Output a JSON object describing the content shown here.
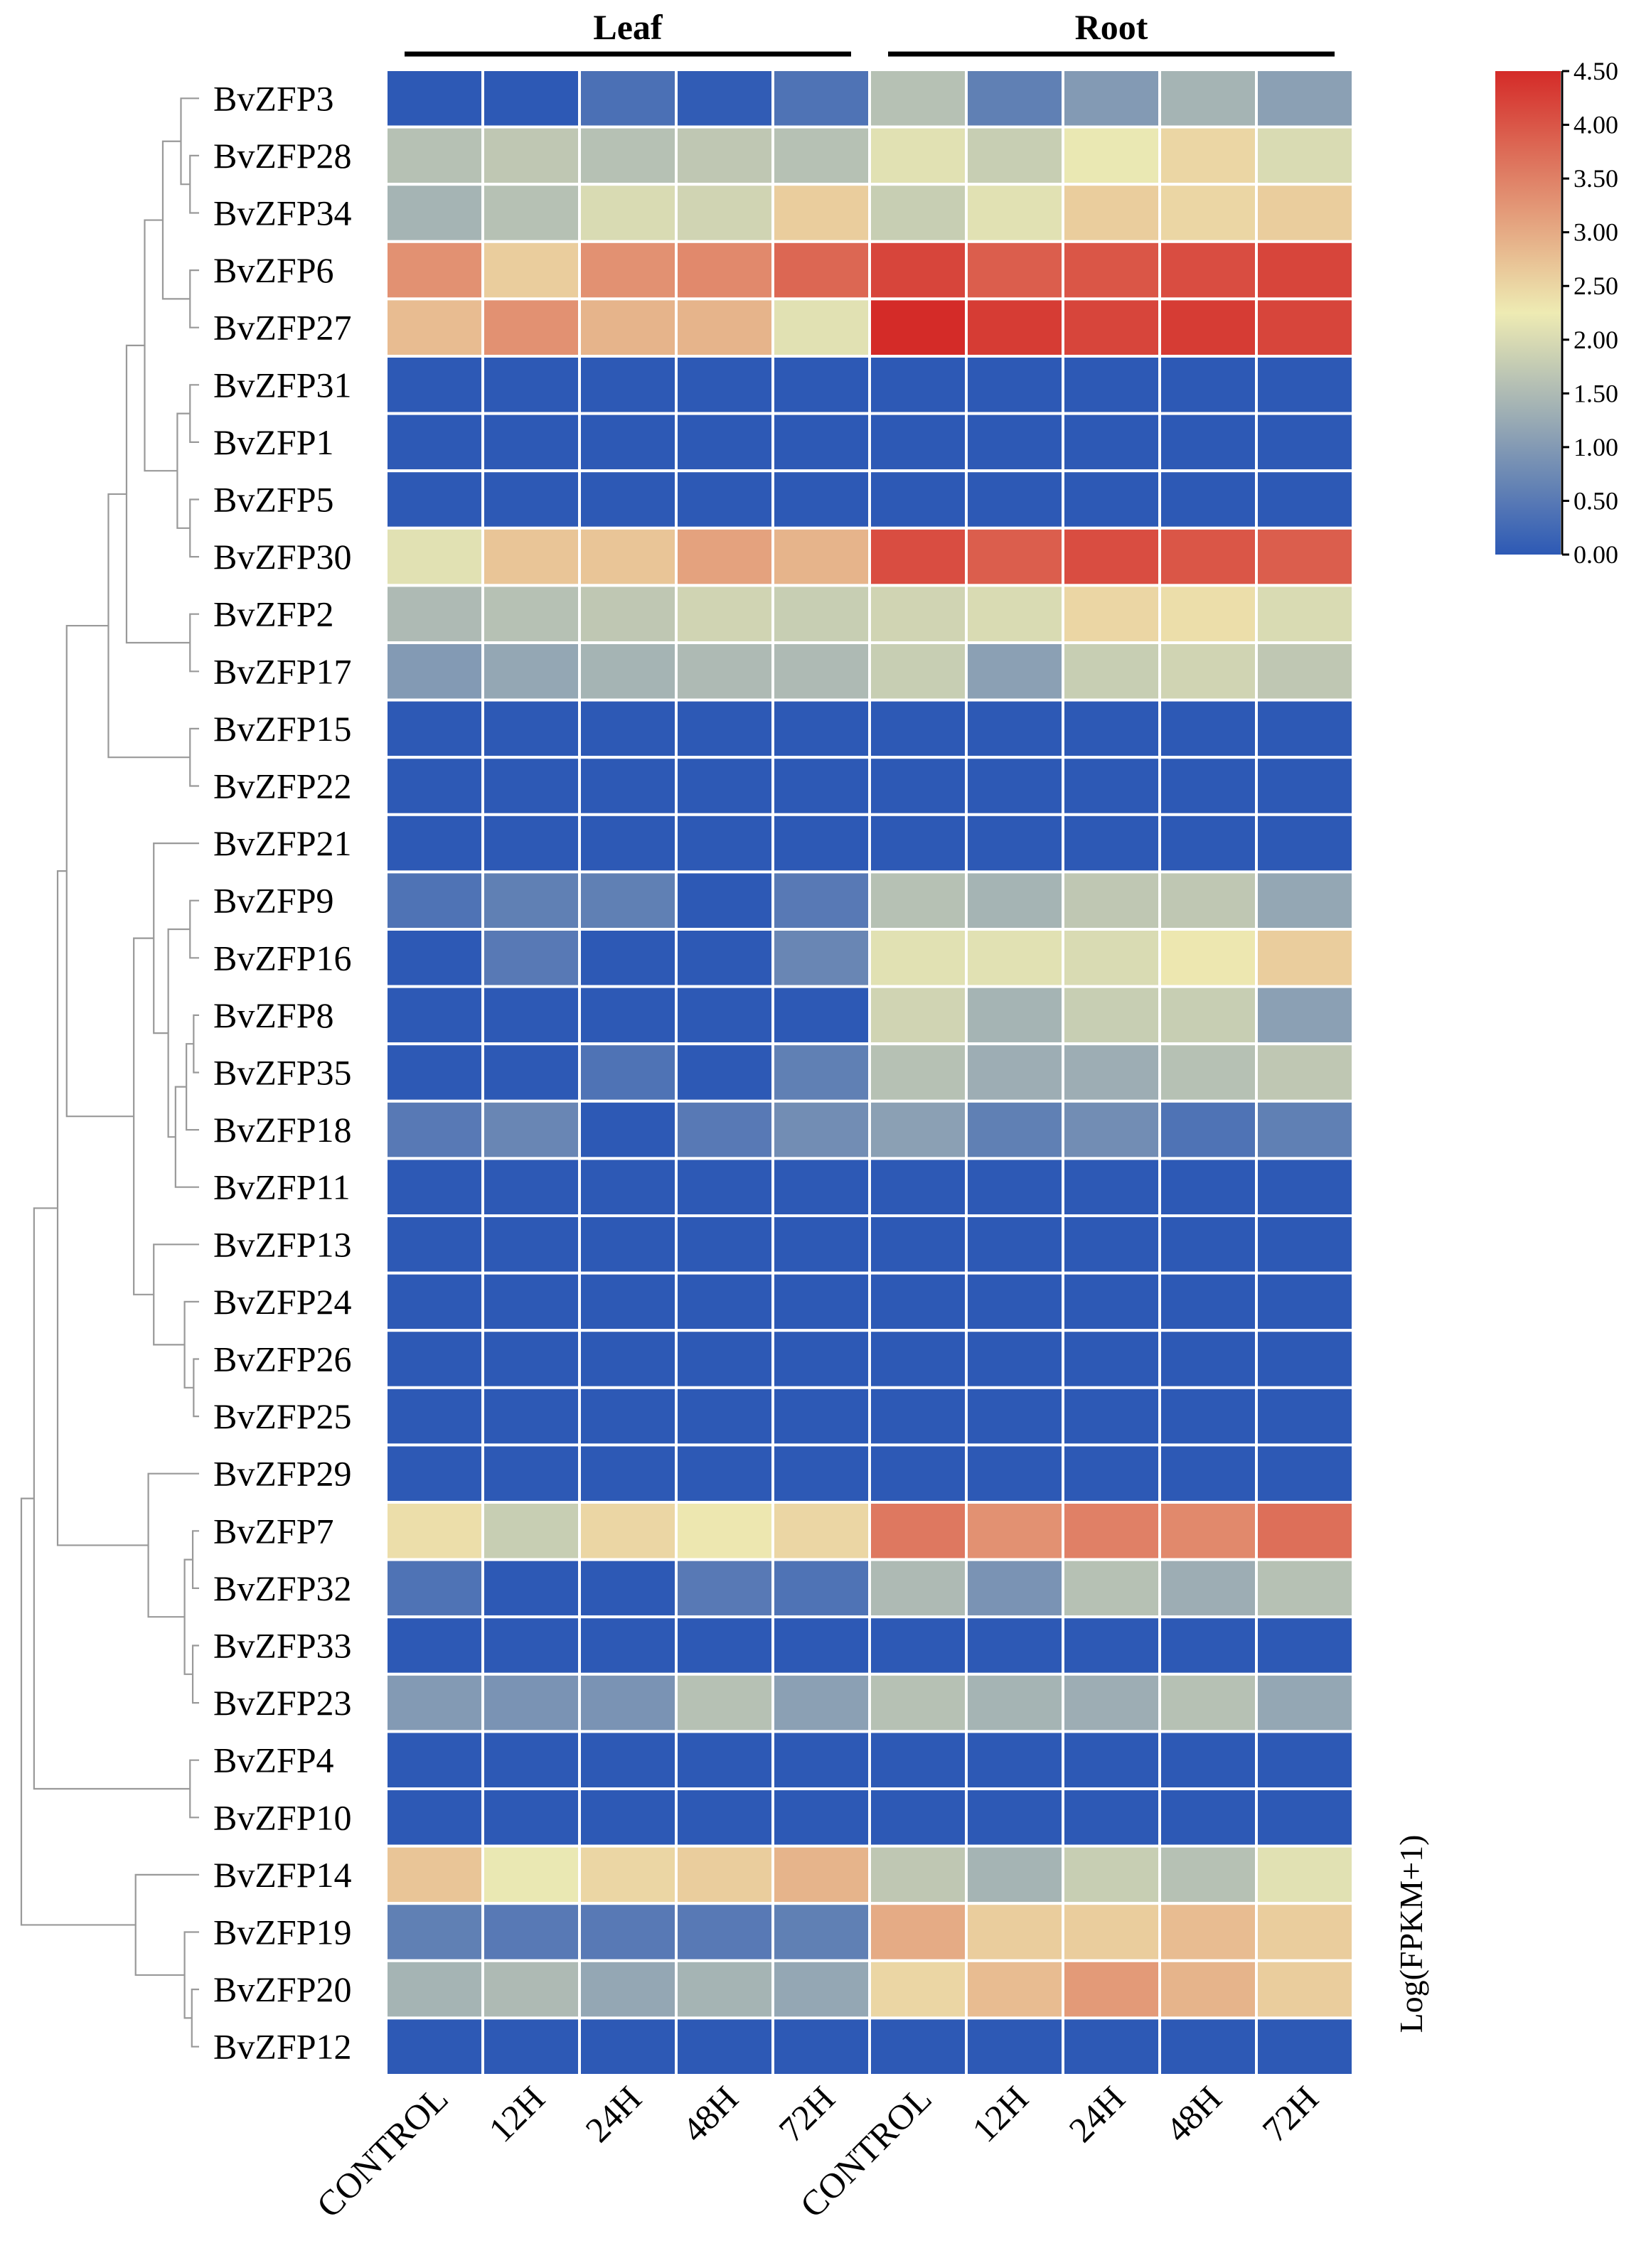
{
  "chart_data": {
    "type": "heatmap",
    "title": "",
    "groups": [
      {
        "name": "Leaf",
        "columns": [
          "CONTROL",
          "12H",
          "24H",
          "48H",
          "72H"
        ]
      },
      {
        "name": "Root",
        "columns": [
          "CONTROL",
          "12H",
          "24H",
          "48H",
          "72H"
        ]
      }
    ],
    "columns": [
      "CONTROL",
      "12H",
      "24H",
      "48H",
      "72H",
      "CONTROL",
      "12H",
      "24H",
      "48H",
      "72H"
    ],
    "rows": [
      "BvZFP3",
      "BvZFP28",
      "BvZFP34",
      "BvZFP6",
      "BvZFP27",
      "BvZFP31",
      "BvZFP1",
      "BvZFP5",
      "BvZFP30",
      "BvZFP2",
      "BvZFP17",
      "BvZFP15",
      "BvZFP22",
      "BvZFP21",
      "BvZFP9",
      "BvZFP16",
      "BvZFP8",
      "BvZFP35",
      "BvZFP18",
      "BvZFP11",
      "BvZFP13",
      "BvZFP24",
      "BvZFP26",
      "BvZFP25",
      "BvZFP29",
      "BvZFP7",
      "BvZFP32",
      "BvZFP33",
      "BvZFP23",
      "BvZFP4",
      "BvZFP10",
      "BvZFP14",
      "BvZFP19",
      "BvZFP20",
      "BvZFP12"
    ],
    "values": [
      [
        0.0,
        0.0,
        0.35,
        0.05,
        0.4,
        1.6,
        0.6,
        1.0,
        1.4,
        1.1
      ],
      [
        1.6,
        1.7,
        1.6,
        1.7,
        1.6,
        2.1,
        1.8,
        2.2,
        2.5,
        2.0
      ],
      [
        1.4,
        1.6,
        2.0,
        1.9,
        2.6,
        1.8,
        2.1,
        2.6,
        2.5,
        2.6
      ],
      [
        3.3,
        2.6,
        3.3,
        3.4,
        3.8,
        4.2,
        3.9,
        4.0,
        4.1,
        4.2
      ],
      [
        2.8,
        3.3,
        2.9,
        2.9,
        2.1,
        4.5,
        4.3,
        4.2,
        4.3,
        4.2
      ],
      [
        0,
        0,
        0,
        0,
        0,
        0,
        0,
        0,
        0,
        0
      ],
      [
        0,
        0,
        0,
        0,
        0,
        0,
        0,
        0,
        0,
        0
      ],
      [
        0,
        0,
        0,
        0,
        0,
        0,
        0,
        0,
        0,
        0
      ],
      [
        2.1,
        2.7,
        2.7,
        3.1,
        2.9,
        4.1,
        3.9,
        4.1,
        4.0,
        3.9
      ],
      [
        1.5,
        1.6,
        1.7,
        1.9,
        1.8,
        1.9,
        2.0,
        2.5,
        2.4,
        2.0
      ],
      [
        1.0,
        1.2,
        1.4,
        1.5,
        1.5,
        1.8,
        1.1,
        1.8,
        1.9,
        1.7
      ],
      [
        0,
        0,
        0,
        0,
        0,
        0,
        0,
        0,
        0,
        0
      ],
      [
        0,
        0,
        0,
        0,
        0,
        0,
        0,
        0,
        0,
        0
      ],
      [
        0,
        0,
        0,
        0,
        0,
        0,
        0,
        0,
        0,
        0
      ],
      [
        0.4,
        0.6,
        0.6,
        0.0,
        0.5,
        1.6,
        1.4,
        1.7,
        1.7,
        1.2
      ],
      [
        0.0,
        0.5,
        0.0,
        0.0,
        0.7,
        2.1,
        2.1,
        2.0,
        2.3,
        2.6
      ],
      [
        0.0,
        0.0,
        0.0,
        0.0,
        0.0,
        1.9,
        1.4,
        1.8,
        1.8,
        1.1
      ],
      [
        0.0,
        0.0,
        0.4,
        0.0,
        0.6,
        1.6,
        1.3,
        1.3,
        1.6,
        1.7
      ],
      [
        0.5,
        0.7,
        0.0,
        0.5,
        0.8,
        1.1,
        0.6,
        0.8,
        0.4,
        0.6
      ],
      [
        0,
        0,
        0,
        0,
        0,
        0,
        0,
        0,
        0,
        0
      ],
      [
        0,
        0,
        0,
        0,
        0,
        0,
        0,
        0,
        0,
        0
      ],
      [
        0,
        0,
        0,
        0,
        0,
        0,
        0,
        0,
        0,
        0
      ],
      [
        0,
        0,
        0,
        0,
        0,
        0,
        0,
        0,
        0,
        0
      ],
      [
        0,
        0,
        0,
        0,
        0,
        0,
        0,
        0,
        0,
        0
      ],
      [
        0,
        0,
        0,
        0,
        0,
        0,
        0,
        0,
        0,
        0
      ],
      [
        2.4,
        1.8,
        2.5,
        2.3,
        2.5,
        3.6,
        3.3,
        3.5,
        3.4,
        3.7
      ],
      [
        0.4,
        0.0,
        0.0,
        0.5,
        0.4,
        1.5,
        0.9,
        1.6,
        1.3,
        1.6
      ],
      [
        0,
        0,
        0,
        0,
        0,
        0,
        0,
        0,
        0,
        0
      ],
      [
        1.0,
        0.9,
        0.9,
        1.6,
        1.1,
        1.6,
        1.4,
        1.3,
        1.6,
        1.2
      ],
      [
        0,
        0,
        0,
        0,
        0,
        0,
        0,
        0,
        0,
        0
      ],
      [
        0,
        0,
        0,
        0,
        0,
        0,
        0,
        0,
        0,
        0
      ],
      [
        2.7,
        2.2,
        2.5,
        2.6,
        2.9,
        1.7,
        1.4,
        1.8,
        1.6,
        2.1
      ],
      [
        0.6,
        0.5,
        0.5,
        0.5,
        0.6,
        3.0,
        2.6,
        2.6,
        2.8,
        2.6
      ],
      [
        1.4,
        1.5,
        1.2,
        1.4,
        1.2,
        2.5,
        2.8,
        3.2,
        2.9,
        2.6
      ],
      [
        0,
        0,
        0,
        0,
        0,
        0,
        0,
        0,
        0,
        0
      ]
    ],
    "colorbar": {
      "min": 0.0,
      "max": 4.5,
      "tick_values": [
        0.0,
        0.5,
        1.0,
        1.5,
        2.0,
        2.5,
        3.0,
        3.5,
        4.0,
        4.5
      ],
      "tick_labels": [
        "0.00",
        "0.50",
        "1.00",
        "1.50",
        "2.00",
        "2.50",
        "3.00",
        "3.50",
        "4.00",
        "4.50"
      ],
      "title": "Log(FPKM+1)",
      "colors": [
        "#2d59b5",
        "#eeebb3",
        "#d42b28"
      ]
    },
    "cell_border_color": "#ffffff",
    "dendrogram": "left",
    "dendrogram_color": "#999999"
  }
}
